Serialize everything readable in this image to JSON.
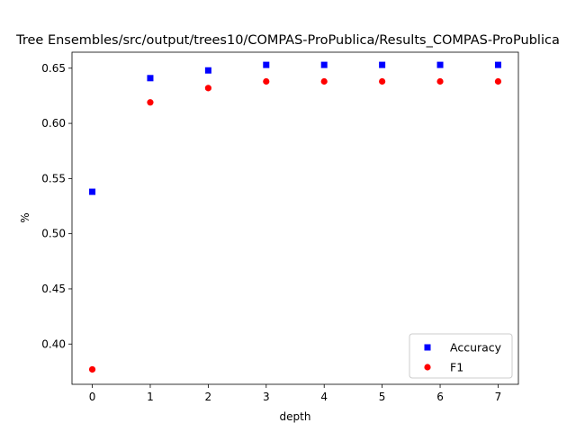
{
  "chart_data": {
    "type": "scatter",
    "title": "Tree Ensembles/src/output/trees10/COMPAS-ProPublica/Results_COMPAS-ProPublica",
    "xlabel": "depth",
    "ylabel": "%",
    "x": [
      0,
      1,
      2,
      3,
      4,
      5,
      6,
      7
    ],
    "xlim": [
      -0.35,
      7.35
    ],
    "ylim": [
      0.3635,
      0.6645
    ],
    "xticks": [
      "0",
      "1",
      "2",
      "3",
      "4",
      "5",
      "6",
      "7"
    ],
    "yticks": [
      "0.40",
      "0.45",
      "0.50",
      "0.55",
      "0.60",
      "0.65"
    ],
    "grid": false,
    "legend_position": "lower-right",
    "series": [
      {
        "name": "Accuracy",
        "marker": "square",
        "color": "#0000ff",
        "values": [
          0.538,
          0.641,
          0.648,
          0.653,
          0.653,
          0.653,
          0.653,
          0.653
        ]
      },
      {
        "name": "F1",
        "marker": "circle",
        "color": "#ff0000",
        "values": [
          0.377,
          0.619,
          0.632,
          0.638,
          0.638,
          0.638,
          0.638,
          0.638
        ]
      }
    ]
  }
}
